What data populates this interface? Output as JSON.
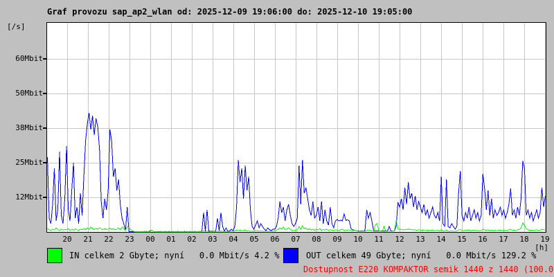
{
  "title": "Graf provozu sap_ap2_wlan od: 2025-12-09 19:06:00 do: 2025-12-10 19:05:00",
  "y_axis": {
    "unit_label": "[/s]",
    "tick_labels": [
      "60Mbit",
      "50Mbit",
      "38Mbit",
      "25Mbit",
      "12Mbit"
    ],
    "tick_values_mbit": [
      62.5,
      50,
      37.5,
      25,
      12.5
    ]
  },
  "x_axis": {
    "unit_label": "[h]",
    "tick_labels": [
      "20",
      "21",
      "22",
      "23",
      "00",
      "01",
      "02",
      "03",
      "04",
      "05",
      "06",
      "07",
      "08",
      "09",
      "10",
      "11",
      "12",
      "13",
      "14",
      "15",
      "16",
      "17",
      "18",
      "19"
    ]
  },
  "legend": {
    "in": {
      "color": "#00ff00",
      "label": "IN celkem 2 Gbyte; nyní   0.0 Mbit/s 4.2 %"
    },
    "out": {
      "color": "#0000ff",
      "label": "OUT celkem 49 Gbyte; nyní   0.0 Mbit/s 129.2 %"
    },
    "availability": {
      "color": "#ff0000",
      "label": "Dostupnost E220 KOMPAKTOR semik 1440 z 1440 (100.0 %)"
    }
  },
  "colors": {
    "background": "#c0c0c0",
    "plot_bg": "#ffffff",
    "grid": "#c6c6c6",
    "border": "#000000"
  },
  "chart_data": {
    "type": "line",
    "title": "Graf provozu sap_ap2_wlan od: 2025-12-09 19:06:00 do: 2025-12-10 19:05:00",
    "x_start": "2025-12-09 19:06:00",
    "x_end": "2025-12-10 19:05:00",
    "sample_interval_minutes": 5,
    "unit": "Mbit/s",
    "ylim": [
      0,
      62.5
    ],
    "grid": true,
    "ytick_labels": [
      "60Mbit",
      "50Mbit",
      "38Mbit",
      "25Mbit",
      "12Mbit"
    ],
    "xtick_labels": [
      "20",
      "21",
      "22",
      "23",
      "00",
      "01",
      "02",
      "03",
      "04",
      "05",
      "06",
      "07",
      "08",
      "09",
      "10",
      "11",
      "12",
      "13",
      "14",
      "15",
      "16",
      "17",
      "18",
      "19"
    ],
    "series": [
      {
        "name": "IN",
        "color": "#00ff00",
        "total": "2 Gbyte",
        "current": "0.0 Mbit/s",
        "percent": "4.2 %",
        "values": [
          1.2,
          0.8,
          0.6,
          1,
          0.7,
          1.5,
          0.8,
          0.6,
          1,
          0.7,
          0.9,
          0.8,
          1.2,
          0.6,
          0.9,
          0.7,
          1.1,
          0.8,
          0.6,
          1,
          0.8,
          1.3,
          0.9,
          1.5,
          1,
          1.8,
          1.2,
          0.9,
          1.4,
          1,
          1.6,
          1.1,
          0.8,
          1.2,
          0.9,
          1,
          1.4,
          0.9,
          1.2,
          0.8,
          1,
          1.5,
          0.8,
          1.8,
          1.2,
          0.6,
          2,
          1.5,
          0.8,
          0.4,
          0.2,
          0.1,
          0.1,
          0.2,
          0.1,
          0.1,
          0.1,
          0.2,
          0.1,
          0.1,
          0.7,
          0.2,
          0.1,
          0.1,
          0.1,
          0.2,
          0.1,
          0.1,
          0.1,
          0.1,
          0.2,
          0.1,
          0.1,
          0.1,
          0.1,
          0.1,
          0.1,
          0.1,
          0.1,
          0.1,
          0.1,
          0.1,
          0.1,
          0.1,
          0.1,
          0.1,
          0.1,
          0.1,
          0.1,
          0.1,
          0.4,
          0.1,
          0.5,
          0.1,
          0.1,
          0.1,
          0.2,
          0.1,
          0.3,
          0.1,
          0.4,
          0.2,
          0.1,
          0.2,
          0.1,
          0.1,
          0.3,
          0.2,
          0.4,
          0.8,
          0.5,
          0.7,
          0.4,
          0.6,
          0.8,
          0.4,
          0.5,
          0.3,
          0.2,
          0.3,
          0.5,
          0.4,
          0.3,
          0.4,
          0.3,
          0.2,
          0.3,
          0.2,
          0.3,
          0.2,
          0.3,
          0.4,
          0.6,
          1,
          1.5,
          1,
          1.8,
          0.8,
          1.2,
          1.5,
          1,
          0.6,
          0.5,
          0.6,
          0.8,
          2,
          1,
          2.2,
          1.2,
          1.5,
          0.8,
          1.2,
          0.7,
          1,
          0.6,
          1,
          0.7,
          1.2,
          0.6,
          0.9,
          0.7,
          1,
          0.6,
          0.8,
          0.7,
          0.5,
          0.8,
          0.7,
          0.5,
          0.8,
          1,
          0.6,
          0.5,
          0.7,
          0.8,
          0.5,
          0.4,
          0.6,
          0.5,
          0.3,
          0.2,
          0.2,
          0.3,
          0.2,
          0.5,
          0.8,
          0.6,
          0.4,
          0.3,
          2.5,
          3,
          0.5,
          0.3,
          0.2,
          2,
          0.3,
          0.2,
          0.3,
          0.2,
          0.3,
          0.5,
          4.2,
          1.2,
          0.8,
          1,
          0.7,
          0.9,
          0.8,
          1.1,
          0.8,
          0.9,
          0.7,
          0.8,
          0.6,
          0.8,
          0.7,
          0.6,
          0.8,
          0.5,
          0.7,
          0.5,
          0.6,
          0.7,
          0.5,
          0.5,
          0.6,
          0.4,
          0.8,
          0.4,
          0.3,
          0.7,
          0.3,
          0.3,
          0.4,
          0.3,
          0.2,
          0.4,
          0.7,
          0.9,
          0.6,
          0.4,
          0.7,
          0.5,
          0.8,
          0.4,
          0.6,
          0.7,
          0.5,
          0.6,
          0.4,
          0.5,
          1,
          0.8,
          0.6,
          0.8,
          0.5,
          0.7,
          0.4,
          0.6,
          0.5,
          0.6,
          0.7,
          0.5,
          0.7,
          0.5,
          0.6,
          0.8,
          1,
          0.5,
          0.7,
          0.5,
          0.8,
          0.9,
          1.5,
          3.3,
          2.5,
          1.2,
          0.8,
          0.6,
          0.7,
          0.5,
          0.6,
          0.8,
          0.5,
          0.6,
          1,
          0.8,
          0.7
        ]
      },
      {
        "name": "OUT",
        "color": "#0000ff",
        "total": "49 Gbyte",
        "current": "0.0 Mbit/s",
        "percent": "129.2 %",
        "values": [
          27,
          5,
          3,
          10,
          23,
          4,
          8,
          29,
          6,
          3,
          12,
          31,
          8,
          4,
          15,
          25,
          5,
          9,
          3,
          14,
          6,
          20,
          33,
          39,
          43,
          37,
          42,
          35,
          41,
          38,
          30,
          11,
          5,
          12,
          8,
          15,
          37,
          33,
          20,
          23,
          15,
          19,
          10,
          5,
          3,
          0.4,
          9,
          0.2,
          0.1,
          0.1,
          0.2,
          0.1,
          0.1,
          0.2,
          0.1,
          0.1,
          0.2,
          0.1,
          0.1,
          0.3,
          0.7,
          0.2,
          0.1,
          0.1,
          0.2,
          0.1,
          0.1,
          0.1,
          0.2,
          0.1,
          0.1,
          0.1,
          0.2,
          0.1,
          0.1,
          0.2,
          0.1,
          0.1,
          0.1,
          0.2,
          0.1,
          0.1,
          0.2,
          0.1,
          0.1,
          0.2,
          0.1,
          0.1,
          0.2,
          0.1,
          7,
          0.3,
          8,
          0.4,
          0.2,
          0.2,
          0.3,
          0.2,
          5,
          0.4,
          7,
          2,
          0.3,
          1.5,
          0.2,
          0.4,
          1,
          0.5,
          2,
          9,
          26,
          18,
          23,
          12,
          24,
          15,
          20,
          8,
          2,
          1,
          2.5,
          4,
          1.5,
          3,
          2,
          1,
          0.5,
          1.5,
          0.8,
          0.5,
          1,
          1,
          2,
          5,
          11,
          7,
          9,
          4,
          8,
          10,
          6,
          3,
          2,
          3,
          5,
          24,
          10,
          26,
          14,
          16,
          12,
          8,
          6,
          11,
          5,
          6,
          9,
          4,
          11,
          3,
          8,
          4,
          2.5,
          9,
          3,
          1.5,
          4,
          4.5,
          4,
          4.3,
          4,
          6.5,
          4.2,
          4.4,
          4,
          1.2,
          0.8,
          0.6,
          0.5,
          0.4,
          0.3,
          0.4,
          0.3,
          0.5,
          8,
          5,
          7,
          4,
          0.5,
          0.3,
          0.4,
          0.4,
          0.3,
          0.4,
          0.3,
          0.4,
          0.3,
          2,
          0.4,
          0.3,
          0.4,
          2,
          10.7,
          9,
          12,
          8,
          16,
          10,
          18,
          12,
          14,
          9,
          13,
          8,
          11,
          9,
          7,
          10,
          6,
          8,
          5,
          7,
          9,
          6,
          5,
          7,
          4,
          20,
          3,
          2,
          19,
          2,
          1.5,
          3,
          2,
          1,
          2,
          14,
          22,
          6,
          4,
          7,
          5,
          9,
          4,
          6,
          8,
          5,
          7,
          4,
          6,
          21,
          15.7,
          8,
          15,
          6,
          12,
          5,
          8,
          6,
          7,
          9,
          6,
          8,
          5,
          7,
          10,
          15.7,
          6,
          8,
          5,
          9,
          6,
          12,
          25.7,
          23,
          6,
          8,
          5,
          7,
          4,
          6,
          8,
          5,
          7,
          16,
          9,
          13
        ]
      }
    ],
    "availability": "Dostupnost E220 KOMPAKTOR semik 1440 z 1440 (100.0 %)"
  }
}
